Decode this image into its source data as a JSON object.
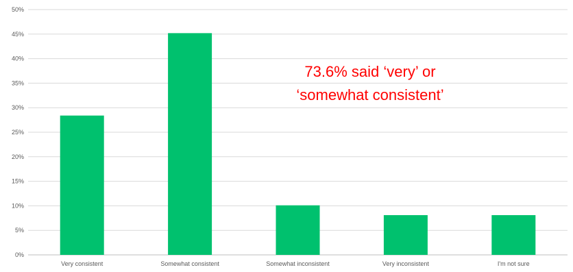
{
  "chart_data": {
    "type": "bar",
    "categories": [
      "Very consistent",
      "Somewhat consistent",
      "Somewhat inconsistent",
      "Very inconsistent",
      "I'm not sure"
    ],
    "values": [
      28.4,
      45.2,
      10.1,
      8.1,
      8.1
    ],
    "ylim": [
      0,
      50
    ],
    "y_ticks": [
      "0%",
      "5%",
      "10%",
      "15%",
      "20%",
      "25%",
      "30%",
      "35%",
      "40%",
      "45%",
      "50%"
    ],
    "grid": true,
    "bar_color": "#00c16e",
    "annotation": {
      "lines": [
        "73.6% said ‘very’ or",
        "‘somewhat consistent’"
      ],
      "color": "#ff0000"
    }
  }
}
